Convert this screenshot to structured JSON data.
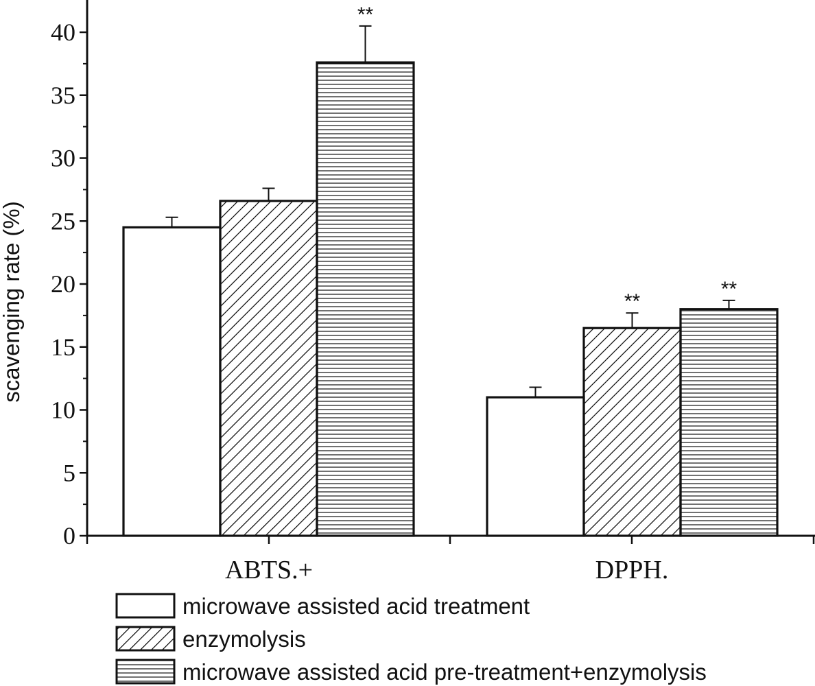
{
  "chart_data": {
    "type": "bar",
    "title": "",
    "xlabel": "",
    "ylabel": "scavenging rate (%)",
    "ylim": [
      0,
      42
    ],
    "yticks": [
      "0",
      "5",
      "10",
      "15",
      "20",
      "25",
      "30",
      "35",
      "40"
    ],
    "categories": [
      "ABTS.+",
      "DPPH."
    ],
    "series": [
      {
        "name": "microwave assisted acid treatment",
        "pattern": "none",
        "values": [
          24.5,
          11.0
        ],
        "errors": [
          0.8,
          0.8
        ],
        "significance": [
          "",
          ""
        ]
      },
      {
        "name": "enzymolysis",
        "pattern": "diagonal",
        "values": [
          26.6,
          16.5
        ],
        "errors": [
          1.0,
          1.2
        ],
        "significance": [
          "",
          "**"
        ]
      },
      {
        "name": "microwave assisted acid pre-treatment+enzymolysis",
        "pattern": "horizontal",
        "values": [
          37.6,
          18.0
        ],
        "errors": [
          2.9,
          0.7
        ],
        "significance": [
          "**",
          "**"
        ]
      }
    ],
    "legend_position": "bottom-left",
    "colors": {
      "stroke": "#111111",
      "fill": "#ffffff"
    }
  }
}
